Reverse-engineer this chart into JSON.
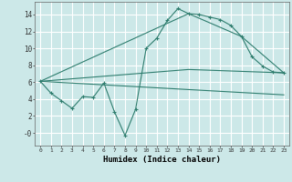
{
  "xlabel": "Humidex (Indice chaleur)",
  "bg_color": "#cce8e8",
  "grid_color": "#b0d8d8",
  "line_color": "#2e7d6e",
  "xlim": [
    -0.5,
    23.5
  ],
  "ylim": [
    -1.5,
    15.5
  ],
  "xticks": [
    0,
    1,
    2,
    3,
    4,
    5,
    6,
    7,
    8,
    9,
    10,
    11,
    12,
    13,
    14,
    15,
    16,
    17,
    18,
    19,
    20,
    21,
    22,
    23
  ],
  "yticks": [
    0,
    2,
    4,
    6,
    8,
    10,
    12,
    14
  ],
  "ytick_labels": [
    "-0",
    "2",
    "4",
    "6",
    "8",
    "10",
    "12",
    "14"
  ],
  "line1_x": [
    0,
    1,
    2,
    3,
    4,
    5,
    6,
    7,
    8,
    9,
    10,
    11,
    12,
    13,
    14,
    15,
    16,
    17,
    18,
    19,
    20,
    21,
    22,
    23
  ],
  "line1_y": [
    6.1,
    4.7,
    3.8,
    2.9,
    4.3,
    4.2,
    5.9,
    2.5,
    -0.3,
    2.8,
    10.0,
    11.2,
    13.3,
    14.7,
    14.1,
    14.0,
    13.7,
    13.4,
    12.7,
    11.4,
    9.0,
    7.9,
    7.2,
    7.1
  ],
  "line2_x": [
    0,
    14,
    19,
    23
  ],
  "line2_y": [
    6.1,
    14.1,
    11.4,
    7.1
  ],
  "line3_x": [
    0,
    23
  ],
  "line3_y": [
    6.1,
    4.5
  ],
  "line4_x": [
    0,
    14,
    23
  ],
  "line4_y": [
    6.1,
    7.5,
    7.1
  ]
}
